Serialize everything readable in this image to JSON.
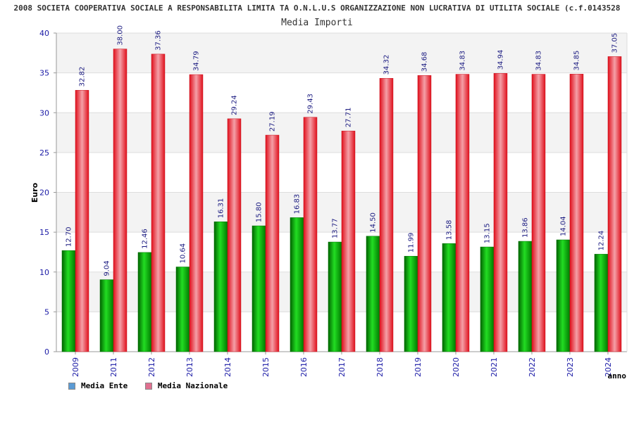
{
  "header": {
    "title": "2008 SOCIETA COOPERATIVA SOCIALE A RESPONSABILITA LIMITA TA O.N.L.U.S ORGANIZZAZIONE NON LUCRATIVA DI UTILITA SOCIALE (c.f.0143528"
  },
  "chart_data": {
    "type": "bar",
    "title": "Media Importi",
    "xlabel": "anno",
    "ylabel": "Euro",
    "ylim": [
      0,
      40
    ],
    "yticks": [
      0,
      5,
      10,
      15,
      20,
      25,
      30,
      35,
      40
    ],
    "grid": true,
    "legend_position": "bottom-left",
    "categories": [
      "2009",
      "2011",
      "2012",
      "2013",
      "2014",
      "2015",
      "2016",
      "2017",
      "2018",
      "2019",
      "2020",
      "2021",
      "2022",
      "2023",
      "2024"
    ],
    "series": [
      {
        "name": "Media Ente",
        "color": "#00b000",
        "legend_color": "#5b9bd5",
        "values": [
          12.7,
          9.04,
          12.46,
          10.64,
          16.31,
          15.8,
          16.83,
          13.77,
          14.5,
          11.99,
          13.58,
          13.15,
          13.86,
          14.04,
          12.24
        ],
        "labels": [
          "12.70",
          "9.04",
          "12.46",
          "10.64",
          "16.31",
          "15.80",
          "16.83",
          "13.77",
          "14.50",
          "11.99",
          "13.58",
          "13.15",
          "13.86",
          "14.04",
          "12.24"
        ]
      },
      {
        "name": "Media Nazionale",
        "color": "#e81c2c",
        "legend_color": "#e07090",
        "values": [
          32.82,
          38.0,
          37.36,
          34.79,
          29.24,
          27.19,
          29.43,
          27.71,
          34.32,
          34.68,
          34.83,
          34.94,
          34.83,
          34.85,
          37.05
        ],
        "labels": [
          "32.82",
          "38.00",
          "37.36",
          "34.79",
          "29.24",
          "27.19",
          "29.43",
          "27.71",
          "34.32",
          "34.68",
          "34.83",
          "34.94",
          "34.83",
          "34.85",
          "37.05"
        ]
      }
    ]
  }
}
